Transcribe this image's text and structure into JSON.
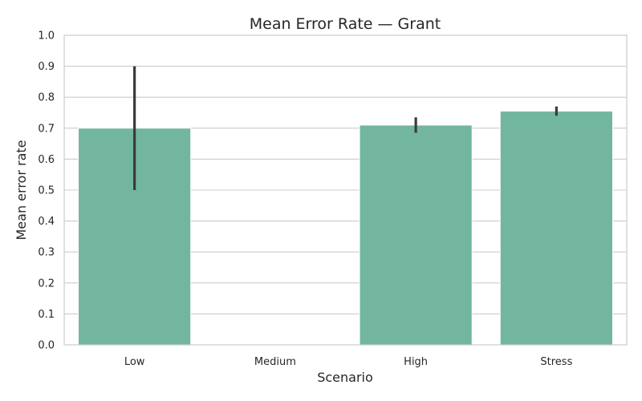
{
  "chart_data": {
    "type": "bar",
    "title": "Mean Error Rate — Grant",
    "xlabel": "Scenario",
    "ylabel": "Mean error rate",
    "categories": [
      "Low",
      "Medium",
      "High",
      "Stress"
    ],
    "values": [
      0.7,
      null,
      0.71,
      0.755
    ],
    "error_low": [
      0.5,
      null,
      0.685,
      0.74
    ],
    "error_high": [
      0.9,
      null,
      0.735,
      0.77
    ],
    "ylim": [
      0,
      1.0
    ],
    "yticks": [
      "0.0",
      "0.1",
      "0.2",
      "0.3",
      "0.4",
      "0.5",
      "0.6",
      "0.7",
      "0.8",
      "0.9",
      "1.0"
    ],
    "grid": true,
    "colors": {
      "bar": "#73b6a0",
      "error_bar": "#3b3b3b",
      "grid": "#cccccc",
      "frame": "#cccccc",
      "text": "#262626"
    }
  }
}
